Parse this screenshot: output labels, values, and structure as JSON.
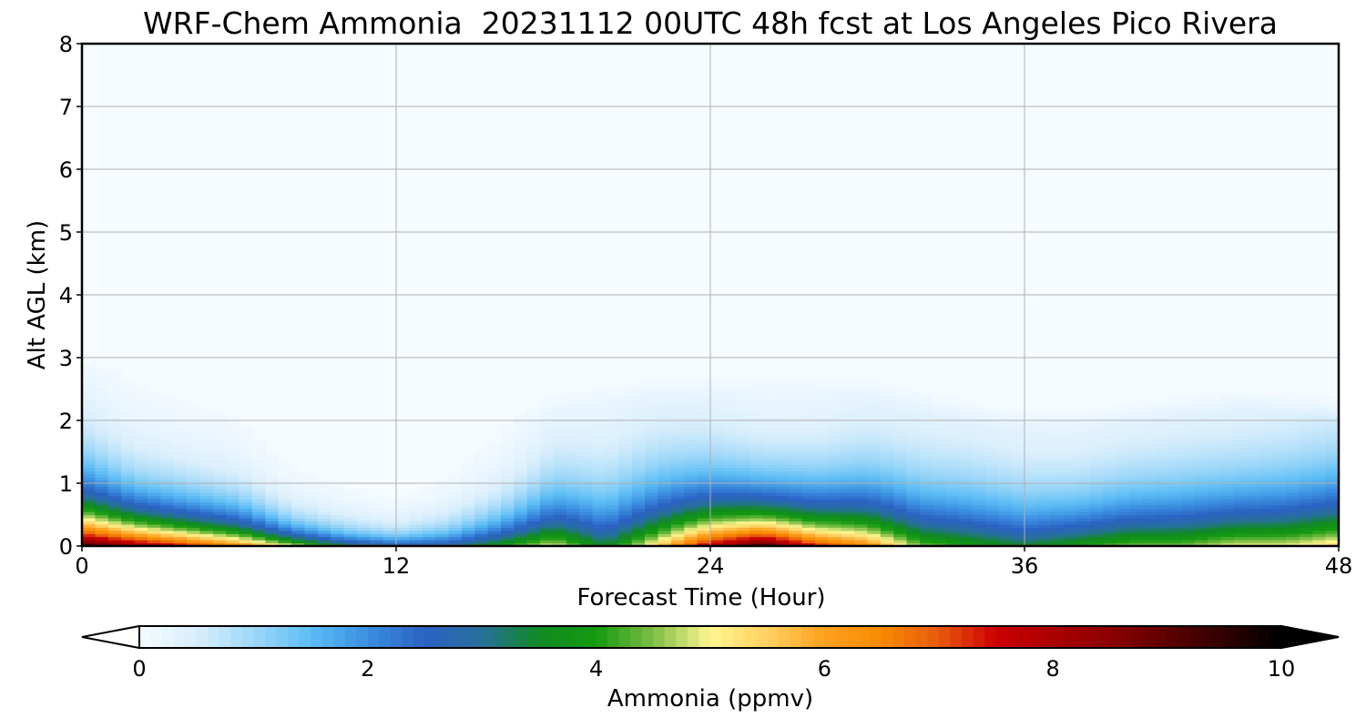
{
  "chart_data": {
    "type": "heatmap",
    "title": "WRF-Chem Ammonia  20231112 00UTC 48h fcst at Los Angeles Pico Rivera",
    "xlabel": "Forecast Time (Hour)",
    "ylabel": "Alt AGL (km)",
    "xlim": [
      0,
      48
    ],
    "ylim": [
      0,
      8
    ],
    "xticks": [
      "0",
      "12",
      "24",
      "36",
      "48"
    ],
    "yticks": [
      "0",
      "1",
      "2",
      "3",
      "4",
      "5",
      "6",
      "7",
      "8"
    ],
    "grid": true,
    "colorbar": {
      "label": "Ammonia  (ppmv)",
      "range": [
        0,
        10
      ],
      "ticks": [
        "0",
        "2",
        "4",
        "6",
        "8",
        "10"
      ],
      "extend": "both"
    },
    "profile_hours": [
      0,
      2,
      4,
      6,
      8,
      10,
      12,
      14,
      16,
      18,
      20,
      22,
      24,
      26,
      28,
      30,
      32,
      34,
      36,
      38,
      40,
      42,
      44,
      46,
      48
    ],
    "max_ammonia_ppmv": [
      9.5,
      8.5,
      7.5,
      6.5,
      5.0,
      3.5,
      3.0,
      3.0,
      4.0,
      5.0,
      3.5,
      5.5,
      8.0,
      9.5,
      7.5,
      6.5,
      4.5,
      4.0,
      3.5,
      4.0,
      4.5,
      4.5,
      5.0,
      5.0,
      5.5
    ],
    "plume_top_km": [
      2.7,
      2.8,
      2.3,
      2.0,
      1.8,
      1.4,
      0.9,
      1.2,
      1.9,
      2.2,
      2.3,
      2.4,
      2.4,
      2.5,
      2.5,
      2.4,
      2.2,
      2.0,
      1.9,
      1.9,
      2.0,
      2.1,
      2.2,
      2.1,
      2.0
    ],
    "scale_height_km": [
      0.7,
      0.55,
      0.5,
      0.45,
      0.3,
      0.25,
      0.2,
      0.3,
      0.45,
      0.7,
      0.8,
      0.8,
      0.7,
      0.6,
      0.65,
      0.75,
      0.8,
      0.8,
      0.75,
      0.7,
      0.75,
      0.8,
      0.8,
      0.85,
      0.9
    ]
  }
}
